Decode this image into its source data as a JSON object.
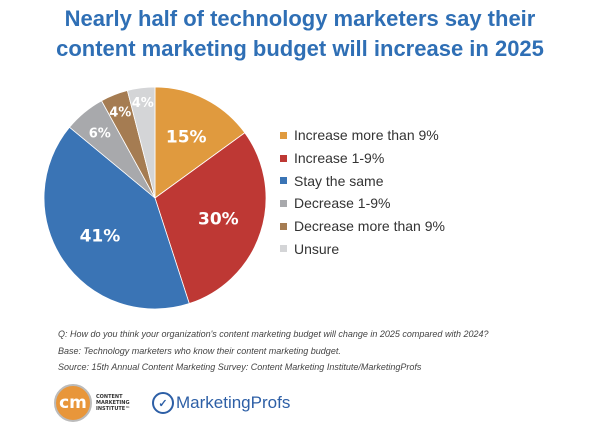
{
  "chart_data": {
    "type": "pie",
    "title": "Nearly half of technology marketers say their content marketing budget will increase in 2025",
    "title_lines": [
      "Nearly half of technology marketers say their",
      "content marketing budget will increase in 2025"
    ],
    "start": "12 o'clock, clockwise",
    "slices": [
      {
        "label": "Increase more than 9%",
        "value": 15,
        "display": "15%",
        "color": "#e09a3e"
      },
      {
        "label": "Increase 1-9%",
        "value": 30,
        "display": "30%",
        "color": "#be3834"
      },
      {
        "label": "Stay the same",
        "value": 41,
        "display": "41%",
        "color": "#3a74b5"
      },
      {
        "label": "Decrease 1-9%",
        "value": 6,
        "display": "6%",
        "color": "#a8a9ac"
      },
      {
        "label": "Decrease more than 9%",
        "value": 4,
        "display": "4%",
        "color": "#a57c52"
      },
      {
        "label": "Unsure",
        "value": 4,
        "display": "4%",
        "color": "#d4d5d7"
      }
    ],
    "legend_position": "right"
  },
  "notes": {
    "question": "Q: How do you think your organization's content marketing budget will change in 2025 compared with 2024?",
    "base": "Base: Technology marketers who know their content marketing budget.",
    "source": "Source: 15th Annual Content Marketing Survey: Content Marketing Institute/MarketingProfs"
  },
  "logos": {
    "cmi_mark": "cm",
    "cmi_text": "CONTENT MARKETING INSTITUTE™",
    "mp_text": "MarketingProfs"
  }
}
